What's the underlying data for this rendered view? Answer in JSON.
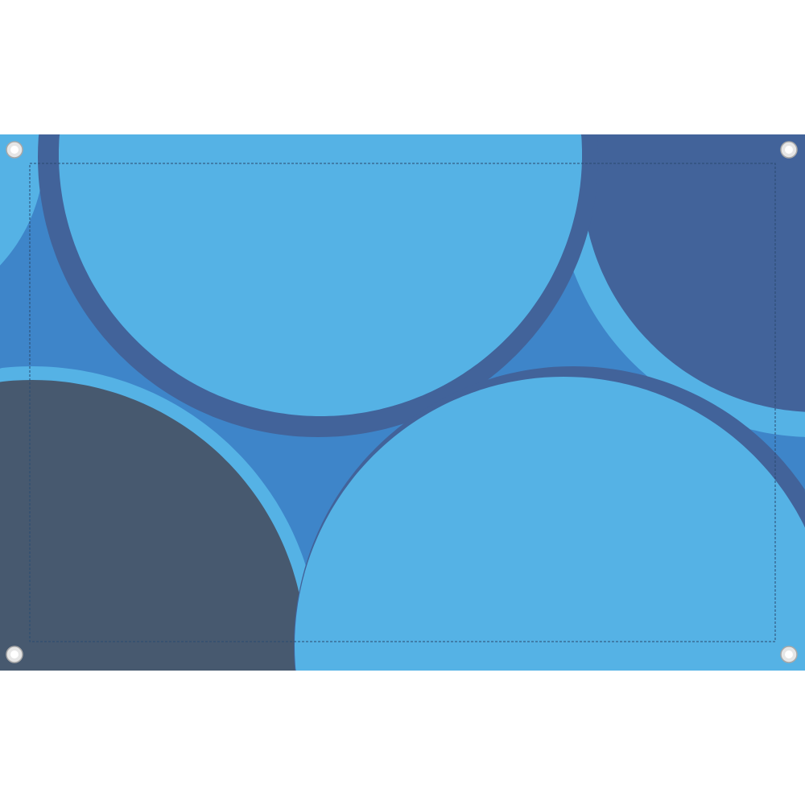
{
  "banner": {
    "colors": {
      "background": "#3e85c9",
      "light_blue": "#55b2e5",
      "dark_blue": "#42639a",
      "slate": "#47596f",
      "stitch": "#2a4a70",
      "grommet_ring": "#e6e6e6",
      "grommet_edge": "#a8a8a8"
    },
    "grommet_icons": [
      "grommet-icon",
      "grommet-icon",
      "grommet-icon",
      "grommet-icon"
    ]
  }
}
